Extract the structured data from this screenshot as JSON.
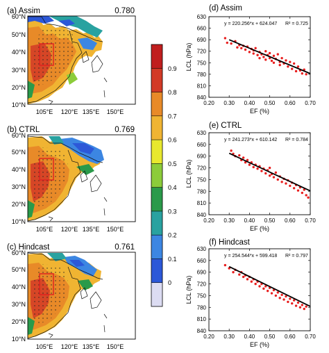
{
  "chart_data": [
    {
      "type": "heatmap",
      "title": "(a) Assim",
      "score": "0.780",
      "x_ticks": [
        "105°E",
        "120°E",
        "135°E",
        "150°E"
      ],
      "y_ticks": [
        "10°N",
        "20°N",
        "30°N",
        "40°N",
        "50°N",
        "60°N"
      ],
      "xlim": [
        95,
        160
      ],
      "ylim": [
        10,
        60
      ],
      "box": {
        "lon": [
          110,
          116
        ],
        "lat": [
          34,
          42
        ]
      }
    },
    {
      "type": "heatmap",
      "title": "(b) CTRL",
      "score": "0.769",
      "x_ticks": [
        "105°E",
        "120°E",
        "135°E",
        "150°E"
      ],
      "y_ticks": [
        "10°N",
        "20°N",
        "30°N",
        "40°N",
        "50°N",
        "60°N"
      ],
      "xlim": [
        95,
        160
      ],
      "ylim": [
        10,
        60
      ],
      "box": {
        "lon": [
          110,
          116
        ],
        "lat": [
          34,
          42
        ]
      }
    },
    {
      "type": "heatmap",
      "title": "(c) Hindcast",
      "score": "0.761",
      "x_ticks": [
        "105°E",
        "120°E",
        "135°E",
        "150°E"
      ],
      "y_ticks": [
        "10°N",
        "20°N",
        "30°N",
        "40°N",
        "50°N",
        "60°N"
      ],
      "xlim": [
        95,
        160
      ],
      "ylim": [
        10,
        60
      ],
      "box": {
        "lon": [
          110,
          116
        ],
        "lat": [
          34,
          42
        ]
      }
    },
    {
      "type": "scatter",
      "title": "(d) Assim",
      "equation": "y = 220.256*x + 624.047",
      "r2": "R² = 0.725",
      "slope": 220.256,
      "intercept": 624.047,
      "xlabel": "EF (%)",
      "ylabel": "LCL (hPa)",
      "xlim": [
        0.2,
        0.7
      ],
      "ylim": [
        630,
        840
      ],
      "y_inverted": true,
      "x_ticks": [
        "0.20",
        "0.30",
        "0.40",
        "0.50",
        "0.60",
        "0.70"
      ],
      "y_ticks": [
        "630",
        "660",
        "690",
        "720",
        "750",
        "780",
        "810",
        "840"
      ],
      "points": [
        [
          0.28,
          686
        ],
        [
          0.29,
          698
        ],
        [
          0.31,
          700
        ],
        [
          0.33,
          694
        ],
        [
          0.34,
          710
        ],
        [
          0.35,
          704
        ],
        [
          0.36,
          712
        ],
        [
          0.37,
          706
        ],
        [
          0.38,
          716
        ],
        [
          0.39,
          708
        ],
        [
          0.4,
          722
        ],
        [
          0.41,
          714
        ],
        [
          0.42,
          726
        ],
        [
          0.42,
          718
        ],
        [
          0.43,
          712
        ],
        [
          0.44,
          730
        ],
        [
          0.45,
          722
        ],
        [
          0.45,
          738
        ],
        [
          0.46,
          728
        ],
        [
          0.47,
          735
        ],
        [
          0.48,
          720
        ],
        [
          0.48,
          742
        ],
        [
          0.49,
          730
        ],
        [
          0.5,
          738
        ],
        [
          0.5,
          725
        ],
        [
          0.51,
          745
        ],
        [
          0.52,
          732
        ],
        [
          0.52,
          750
        ],
        [
          0.53,
          740
        ],
        [
          0.54,
          728
        ],
        [
          0.55,
          748
        ],
        [
          0.55,
          756
        ],
        [
          0.56,
          738
        ],
        [
          0.57,
          752
        ],
        [
          0.58,
          744
        ],
        [
          0.59,
          760
        ],
        [
          0.6,
          748
        ],
        [
          0.61,
          766
        ],
        [
          0.62,
          752
        ],
        [
          0.63,
          772
        ],
        [
          0.64,
          760
        ],
        [
          0.65,
          770
        ],
        [
          0.66,
          778
        ],
        [
          0.67,
          768
        ],
        [
          0.68,
          780
        ]
      ]
    },
    {
      "type": "scatter",
      "title": "(e) CTRL",
      "equation": "y = 241.273*x + 610.142",
      "r2": "R² = 0.784",
      "slope": 241.273,
      "intercept": 610.142,
      "xlabel": "EF (%)",
      "ylabel": "LCL (hPa)",
      "xlim": [
        0.2,
        0.7
      ],
      "ylim": [
        630,
        840
      ],
      "y_inverted": true,
      "x_ticks": [
        "0.20",
        "0.30",
        "0.40",
        "0.50",
        "0.60",
        "0.70"
      ],
      "y_ticks": [
        "630",
        "660",
        "690",
        "720",
        "750",
        "780",
        "810",
        "840"
      ],
      "points": [
        [
          0.31,
          676
        ],
        [
          0.32,
          684
        ],
        [
          0.33,
          690
        ],
        [
          0.35,
          688
        ],
        [
          0.36,
          700
        ],
        [
          0.37,
          694
        ],
        [
          0.38,
          706
        ],
        [
          0.39,
          700
        ],
        [
          0.4,
          712
        ],
        [
          0.41,
          706
        ],
        [
          0.42,
          718
        ],
        [
          0.43,
          712
        ],
        [
          0.44,
          722
        ],
        [
          0.45,
          716
        ],
        [
          0.46,
          728
        ],
        [
          0.47,
          722
        ],
        [
          0.48,
          734
        ],
        [
          0.49,
          726
        ],
        [
          0.5,
          740
        ],
        [
          0.5,
          720
        ],
        [
          0.51,
          736
        ],
        [
          0.52,
          744
        ],
        [
          0.53,
          732
        ],
        [
          0.54,
          750
        ],
        [
          0.55,
          742
        ],
        [
          0.56,
          756
        ],
        [
          0.57,
          748
        ],
        [
          0.58,
          760
        ],
        [
          0.59,
          752
        ],
        [
          0.6,
          766
        ],
        [
          0.61,
          758
        ],
        [
          0.62,
          772
        ],
        [
          0.63,
          764
        ],
        [
          0.64,
          778
        ],
        [
          0.65,
          770
        ],
        [
          0.66,
          784
        ],
        [
          0.67,
          776
        ],
        [
          0.68,
          790
        ],
        [
          0.69,
          796
        ]
      ]
    },
    {
      "type": "scatter",
      "title": "(f) Hindcast",
      "equation": "y = 254.544*x + 599.418",
      "r2": "R² = 0.797",
      "slope": 254.544,
      "intercept": 599.418,
      "xlabel": "EF (%)",
      "ylabel": "LCL (hPa)",
      "xlim": [
        0.2,
        0.7
      ],
      "ylim": [
        630,
        840
      ],
      "y_inverted": true,
      "x_ticks": [
        "0.20",
        "0.30",
        "0.40",
        "0.50",
        "0.60",
        "0.70"
      ],
      "y_ticks": [
        "630",
        "660",
        "690",
        "720",
        "750",
        "780",
        "810",
        "840"
      ],
      "points": [
        [
          0.28,
          672
        ],
        [
          0.3,
          680
        ],
        [
          0.32,
          690
        ],
        [
          0.33,
          684
        ],
        [
          0.35,
          696
        ],
        [
          0.36,
          690
        ],
        [
          0.37,
          702
        ],
        [
          0.38,
          698
        ],
        [
          0.39,
          708
        ],
        [
          0.4,
          702
        ],
        [
          0.41,
          714
        ],
        [
          0.42,
          708
        ],
        [
          0.43,
          720
        ],
        [
          0.44,
          714
        ],
        [
          0.45,
          726
        ],
        [
          0.46,
          720
        ],
        [
          0.47,
          732
        ],
        [
          0.48,
          726
        ],
        [
          0.49,
          738
        ],
        [
          0.5,
          730
        ],
        [
          0.51,
          744
        ],
        [
          0.52,
          736
        ],
        [
          0.53,
          750
        ],
        [
          0.54,
          742
        ],
        [
          0.55,
          756
        ],
        [
          0.56,
          748
        ],
        [
          0.57,
          760
        ],
        [
          0.58,
          752
        ],
        [
          0.59,
          766
        ],
        [
          0.6,
          758
        ],
        [
          0.61,
          770
        ],
        [
          0.62,
          762
        ],
        [
          0.63,
          776
        ],
        [
          0.64,
          768
        ],
        [
          0.65,
          780
        ],
        [
          0.66,
          774
        ],
        [
          0.67,
          784
        ],
        [
          0.68,
          778
        ]
      ]
    }
  ],
  "colorbar": {
    "levels": [
      "0",
      "0.1",
      "0.2",
      "0.3",
      "0.4",
      "0.5",
      "0.6",
      "0.7",
      "0.8",
      "0.9"
    ],
    "colors": [
      "#dcdcf2",
      "#2c58d8",
      "#3c86e2",
      "#29a2a0",
      "#2a9a4a",
      "#8ccc3a",
      "#e8e82e",
      "#f0b432",
      "#e88a28",
      "#d23a26",
      "#c01e1e"
    ]
  }
}
